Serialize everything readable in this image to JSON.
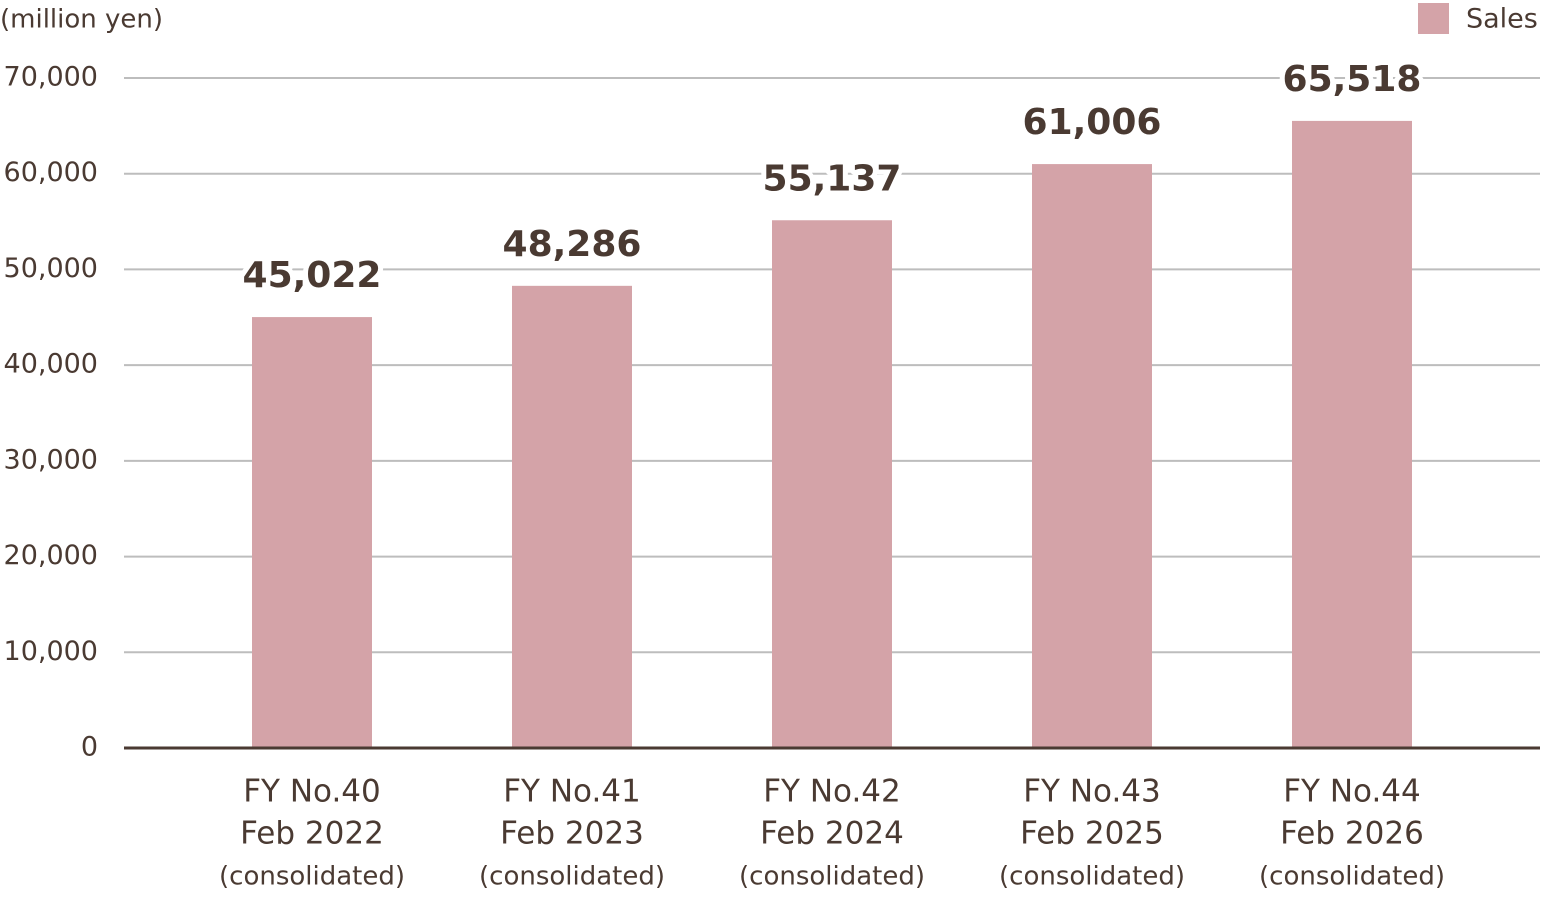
{
  "chart_data": {
    "type": "bar",
    "y_axis_label": "(million yen)",
    "categories": [
      [
        "FY No.40",
        "Feb 2022",
        "(consolidated)"
      ],
      [
        "FY No.41",
        "Feb 2023",
        "(consolidated)"
      ],
      [
        "FY No.42",
        "Feb 2024",
        "(consolidated)"
      ],
      [
        "FY No.43",
        "Feb 2025",
        "(consolidated)"
      ],
      [
        "FY No.44",
        "Feb 2026",
        "(consolidated)"
      ]
    ],
    "series": [
      {
        "name": "Sales",
        "color": "#d4a3a8",
        "values": [
          45022,
          48286,
          55137,
          61006,
          65518
        ],
        "value_labels": [
          "45,022",
          "48,286",
          "55,137",
          "61,006",
          "65,518"
        ]
      }
    ],
    "ylim": [
      0,
      70000
    ],
    "yticks": [
      0,
      {
        "value": 10000,
        "label": "10,000"
      },
      {
        "value": 20000,
        "label": "20,000"
      },
      {
        "value": 30000,
        "label": "30,000"
      },
      {
        "value": 40000,
        "label": "40,000"
      },
      {
        "value": 50000,
        "label": "50,000"
      },
      {
        "value": 60000,
        "label": "60,000"
      },
      {
        "value": 70000,
        "label": "70,000"
      }
    ],
    "grid": true,
    "legend": "top-right"
  }
}
